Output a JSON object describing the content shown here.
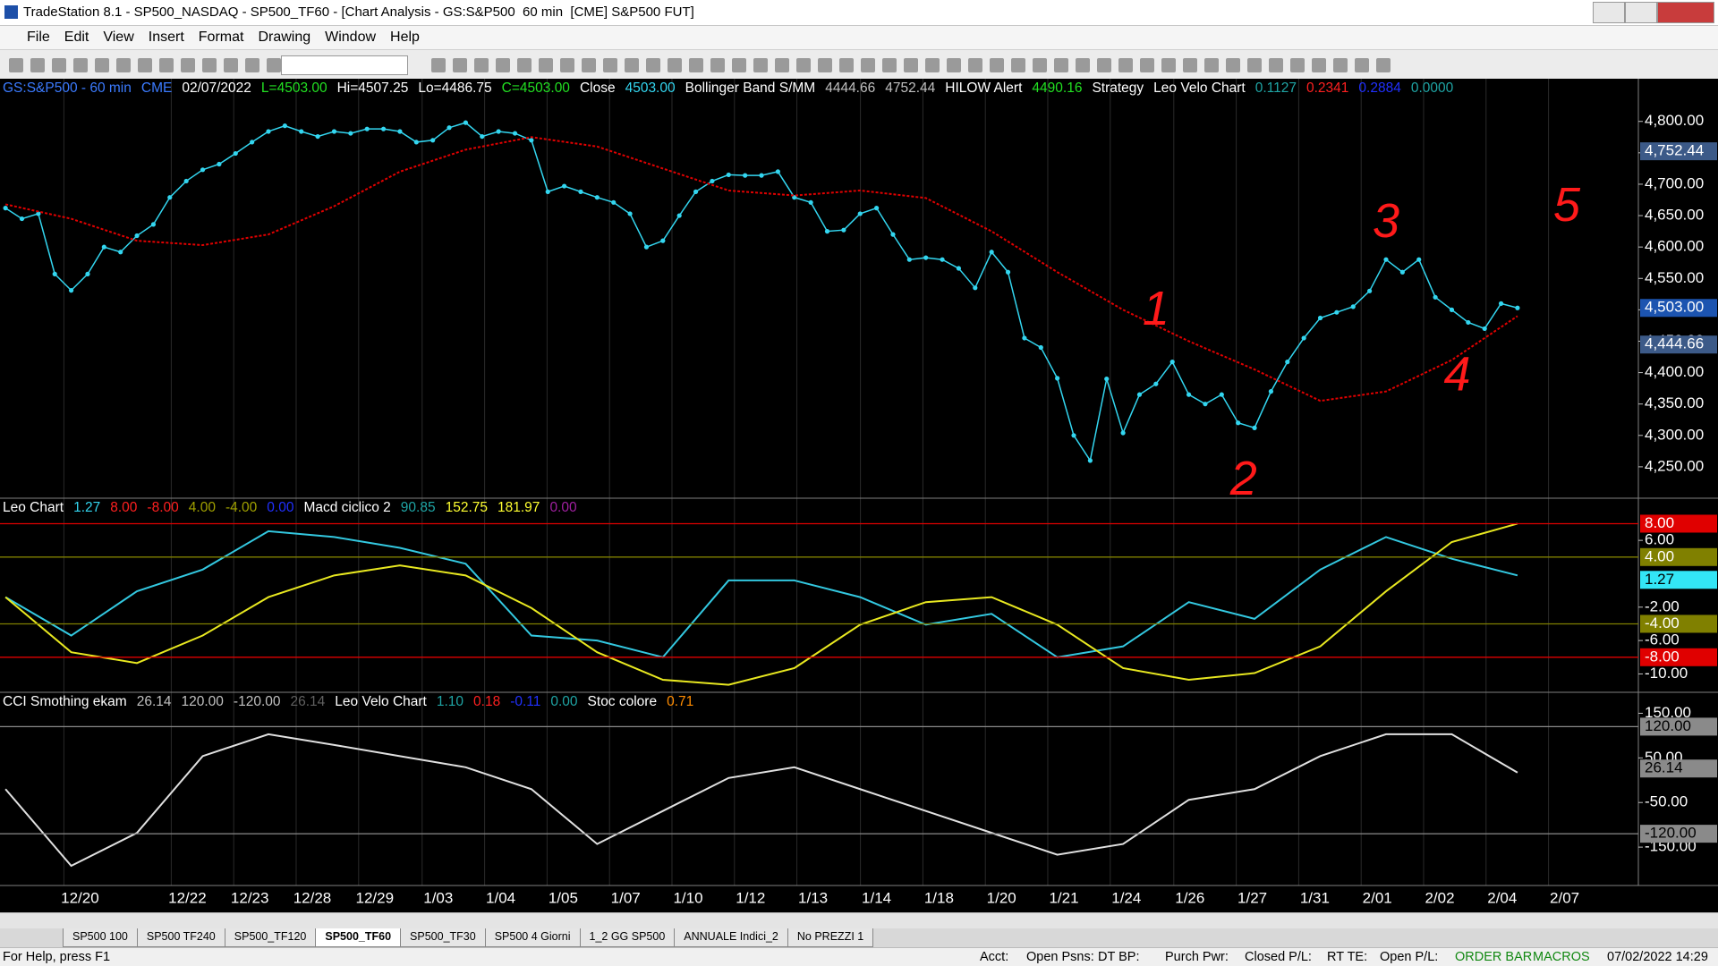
{
  "window": {
    "title": "TradeStation 8.1 - SP500_NASDAQ - SP500_TF60 - [Chart Analysis - GS:S&P500  60 min  [CME] S&P500 FUT]"
  },
  "menu": [
    "File",
    "Edit",
    "View",
    "Insert",
    "Format",
    "Drawing",
    "Window",
    "Help"
  ],
  "chart": {
    "dates": [
      "12/20",
      "12/22",
      "12/23",
      "12/28",
      "12/29",
      "1/03",
      "1/04",
      "1/05",
      "1/07",
      "1/10",
      "1/12",
      "1/13",
      "1/14",
      "1/18",
      "1/20",
      "1/21",
      "1/24",
      "1/26",
      "1/27",
      "1/31",
      "2/01",
      "2/02",
      "2/04",
      "2/07"
    ],
    "panels": [
      {
        "header": [
          {
            "text": "GS:S&P500 - 60 min",
            "color": "#3b7bff"
          },
          {
            "text": "CME",
            "color": "#3b7bff"
          },
          {
            "text": "02/07/2022",
            "color": "#ffffff"
          },
          {
            "text": "L=4503.00",
            "color": "#22e022"
          },
          {
            "text": "Hi=4507.25",
            "color": "#ffffff"
          },
          {
            "text": "Lo=4486.75",
            "color": "#ffffff"
          },
          {
            "text": "C=4503.00",
            "color": "#22e022"
          },
          {
            "text": "Close",
            "color": "#ffffff"
          },
          {
            "text": "4503.00",
            "color": "#33d6f0"
          },
          {
            "text": "Bollinger Band S/MM",
            "color": "#ffffff"
          },
          {
            "text": "4444.66",
            "color": "#c0c0c0"
          },
          {
            "text": "4752.44",
            "color": "#c0c0c0"
          },
          {
            "text": "HILOW Alert",
            "color": "#ffffff"
          },
          {
            "text": "4490.16",
            "color": "#22e022"
          },
          {
            "text": "Strategy",
            "color": "#ffffff"
          },
          {
            "text": "Leo Velo Chart",
            "color": "#ffffff"
          },
          {
            "text": "0.1127",
            "color": "#1fa5a5"
          },
          {
            "text": "0.2341",
            "color": "#ff2020"
          },
          {
            "text": "0.2884",
            "color": "#2030ff"
          },
          {
            "text": "0.0000",
            "color": "#1fa5a5"
          }
        ],
        "ylim": [
          4200,
          4868
        ],
        "yticks": [
          {
            "value": 4800,
            "label": "4,800.00"
          },
          {
            "value": 4750,
            "label": "4,750.00"
          },
          {
            "value": 4700,
            "label": "4,700.00"
          },
          {
            "value": 4650,
            "label": "4,650.00"
          },
          {
            "value": 4600,
            "label": "4,600.00"
          },
          {
            "value": 4550,
            "label": "4,550.00"
          },
          {
            "value": 4500,
            "label": "4,500.00"
          },
          {
            "value": 4450,
            "label": "4,450.00"
          },
          {
            "value": 4400,
            "label": "4,400.00"
          },
          {
            "value": 4350,
            "label": "4,350.00"
          },
          {
            "value": 4300,
            "label": "4,300.00"
          },
          {
            "value": 4250,
            "label": "4,250.00"
          }
        ],
        "markers": [
          {
            "value": 4752.44,
            "label": "4,752.44",
            "color": "#3c5a88",
            "text_color": "#ffffff",
            "line": false
          },
          {
            "value": 4503,
            "label": "4,503.00",
            "color": "#1c54b0",
            "text_color": "#ffffff",
            "line": false
          },
          {
            "value": 4444.66,
            "label": "4,444.66",
            "color": "#3c5a88",
            "text_color": "#ffffff",
            "line": false
          }
        ],
        "series": [
          {
            "color": "#33d6f0",
            "dots": true,
            "values": [
              4662,
              4645,
              4653,
              4557,
              4531,
              4557,
              4600,
              4592,
              4618,
              4636,
              4679,
              4705,
              4723,
              4732,
              4749,
              4767,
              4784,
              4793,
              4784,
              4776,
              4784,
              4781,
              4788,
              4788,
              4784,
              4767,
              4770,
              4790,
              4798,
              4776,
              4784,
              4781,
              4770,
              4688,
              4697,
              4688,
              4679,
              4671,
              4653,
              4600,
              4610,
              4650,
              4688,
              4705,
              4715,
              4714,
              4714,
              4720,
              4679,
              4671,
              4625,
              4627,
              4653,
              4662,
              4620,
              4580,
              4583,
              4580,
              4566,
              4535,
              4592,
              4560,
              4455,
              4440,
              4391,
              4300,
              4260,
              4390,
              4304,
              4365,
              4382,
              4417,
              4365,
              4350,
              4365,
              4320,
              4312,
              4370,
              4417,
              4455,
              4487,
              4496,
              4505,
              4530,
              4580,
              4560,
              4580,
              4520,
              4500,
              4480,
              4470,
              4510,
              4503
            ]
          },
          {
            "color": "#e00000",
            "dots": false,
            "values": [
              4668,
              4645,
              4610,
              4603,
              4620,
              4665,
              4720,
              4755,
              4775,
              4760,
              4725,
              4690,
              4682,
              4690,
              4678,
              4625,
              4560,
              4500,
              4450,
              4405,
              4355,
              4370,
              4420,
              4490
            ]
          }
        ]
      },
      {
        "header": [
          {
            "text": "Leo Chart",
            "color": "#ffffff"
          },
          {
            "text": "1.27",
            "color": "#33d6f0"
          },
          {
            "text": "8.00",
            "color": "#ff2020"
          },
          {
            "text": "-8.00",
            "color": "#ff2020"
          },
          {
            "text": "4.00",
            "color": "#a0a000"
          },
          {
            "text": "-4.00",
            "color": "#a0a000"
          },
          {
            "text": "0.00",
            "color": "#2030ff"
          },
          {
            "text": "Macd ciclico 2",
            "color": "#ffffff"
          },
          {
            "text": "90.85",
            "color": "#1fa5a5"
          },
          {
            "text": "152.75",
            "color": "#ffff30"
          },
          {
            "text": "181.97",
            "color": "#ffff30"
          },
          {
            "text": "0.00",
            "color": "#a020a0"
          }
        ],
        "ylim": [
          -12.2,
          11.05
        ],
        "yticks": [
          {
            "value": 6,
            "label": "6.00"
          },
          {
            "value": -2,
            "label": "-2.00"
          },
          {
            "value": -6,
            "label": "-6.00"
          },
          {
            "value": -10,
            "label": "-10.00"
          }
        ],
        "markers": [
          {
            "value": 8,
            "label": "8.00",
            "color": "#e00000",
            "text_color": "#ffffff",
            "line": true
          },
          {
            "value": 4,
            "label": "4.00",
            "color": "#808000",
            "text_color": "#ffffff",
            "line": true
          },
          {
            "value": 1.27,
            "label": "1.27",
            "color": "#33e6f6",
            "text_color": "#000000",
            "line": false
          },
          {
            "value": -4,
            "label": "-4.00",
            "color": "#808000",
            "text_color": "#ffffff",
            "line": true
          },
          {
            "value": -8,
            "label": "-8.00",
            "color": "#e00000",
            "text_color": "#ffffff",
            "line": true
          }
        ],
        "series": [
          {
            "color": "#33c8e0",
            "dots": false,
            "values": [
              -0.8,
              -5.4,
              -0.1,
              2.5,
              7.1,
              6.4,
              5.1,
              3.2,
              -5.4,
              -6.0,
              -8.0,
              1.2,
              1.2,
              -0.8,
              -4.1,
              -2.8,
              -8.0,
              -6.7,
              -1.4,
              -3.4,
              2.5,
              6.4,
              3.8,
              1.8
            ]
          },
          {
            "color": "#e8e820",
            "dots": false,
            "values": [
              -0.8,
              -7.4,
              -8.7,
              -5.4,
              -0.8,
              1.8,
              3.0,
              1.8,
              -2.1,
              -7.4,
              -10.7,
              -11.3,
              -9.3,
              -4.1,
              -1.4,
              -0.8,
              -4.1,
              -9.3,
              -10.7,
              -9.9,
              -6.7,
              -0.1,
              5.8,
              8.0
            ]
          }
        ]
      },
      {
        "header": [
          {
            "text": "CCI Smothing ekam",
            "color": "#ffffff"
          },
          {
            "text": "26.14",
            "color": "#c0c0c0"
          },
          {
            "text": "120.00",
            "color": "#c0c0c0"
          },
          {
            "text": "-120.00",
            "color": "#c0c0c0"
          },
          {
            "text": "26.14",
            "color": "#606060"
          },
          {
            "text": "Leo Velo Chart",
            "color": "#ffffff"
          },
          {
            "text": "1.10",
            "color": "#1fa5a5"
          },
          {
            "text": "0.18",
            "color": "#ff2020"
          },
          {
            "text": "-0.11",
            "color": "#2030ff"
          },
          {
            "text": "0.00",
            "color": "#1fa5a5"
          },
          {
            "text": "Stoc colore",
            "color": "#ffffff"
          },
          {
            "text": "0.71",
            "color": "#ff8c00"
          }
        ],
        "ylim": [
          -236,
          197
        ],
        "yticks": [
          {
            "value": 150,
            "label": "150.00"
          },
          {
            "value": 50,
            "label": "50.00"
          },
          {
            "value": -50,
            "label": "-50.00"
          },
          {
            "value": -150,
            "label": "-150.00"
          }
        ],
        "markers": [
          {
            "value": 120,
            "label": "120.00",
            "color": "#8a8a8a",
            "text_color": "#000000",
            "line": true
          },
          {
            "value": 26.14,
            "label": "26.14",
            "color": "#8a8a8a",
            "text_color": "#000000",
            "line": false
          },
          {
            "value": -120,
            "label": "-120.00",
            "color": "#8a8a8a",
            "text_color": "#000000",
            "line": true
          }
        ],
        "series": [
          {
            "color": "#e0e0e0",
            "dots": false,
            "values": [
              -20,
              -192,
              -118,
              54,
              103,
              79,
              54,
              29,
              -20,
              -143,
              -69,
              5,
              29,
              -20,
              -69,
              -118,
              -167,
              -143,
              -44,
              -20,
              54,
              103,
              103,
              17
            ]
          }
        ]
      }
    ],
    "annotations": [
      {
        "text": "1",
        "color": "#ff1a1a"
      },
      {
        "text": "2",
        "color": "#ff1a1a"
      },
      {
        "text": "3",
        "color": "#ff1a1a"
      },
      {
        "text": "4",
        "color": "#ff1a1a"
      },
      {
        "text": "5",
        "color": "#ff1a1a"
      }
    ]
  },
  "tabs": [
    "SP500 100",
    "SP500 TF240",
    "SP500_TF120",
    "SP500_TF60",
    "SP500_TF30",
    "SP500 4 Giorni",
    "1_2 GG SP500",
    "ANNUALE Indici_2",
    "No PREZZI 1"
  ],
  "status": {
    "help": "For Help, press F1",
    "fields": [
      "Acct:",
      "Open Psns:",
      "DT BP:",
      "Purch Pwr:",
      "Closed P/L:",
      "RT TE:",
      "Open P/L:"
    ],
    "order_bar": "ORDER BAR",
    "macros": "MACROS",
    "clock": "07/02/2022 14:29"
  }
}
